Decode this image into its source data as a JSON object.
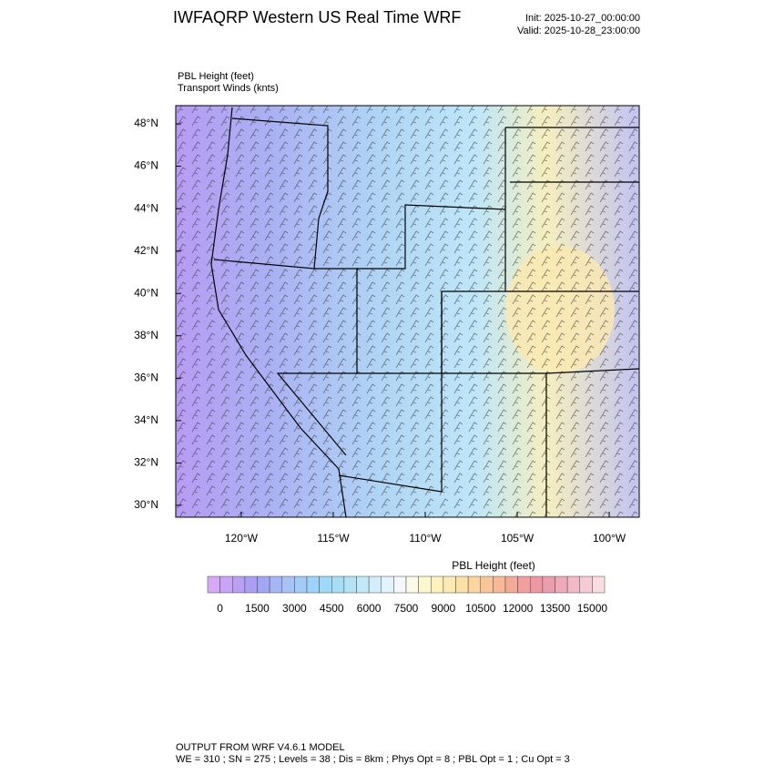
{
  "header": {
    "title": "IWFAQRP Western US Real Time WRF",
    "init": "Init: 2025-10-27_00:00:00",
    "valid": "Valid: 2025-10-28_23:00:00"
  },
  "map": {
    "field_label": "PBL Height   (feet)",
    "wind_label": "Transport Winds   (knts)",
    "xlim": [
      -123.56,
      -98.37
    ],
    "ylim": [
      29.44,
      48.86
    ],
    "xticks": [
      {
        "value": -120,
        "label": "120°W"
      },
      {
        "value": -115,
        "label": "115°W"
      },
      {
        "value": -110,
        "label": "110°W"
      },
      {
        "value": -105,
        "label": "105°W"
      },
      {
        "value": -100,
        "label": "100°W"
      }
    ],
    "yticks": [
      {
        "value": 30,
        "label": "30°N"
      },
      {
        "value": 32,
        "label": "32°N"
      },
      {
        "value": 34,
        "label": "34°N"
      },
      {
        "value": 36,
        "label": "36°N"
      },
      {
        "value": 38,
        "label": "38°N"
      },
      {
        "value": 40,
        "label": "40°N"
      },
      {
        "value": 42,
        "label": "42°N"
      },
      {
        "value": 44,
        "label": "44°N"
      },
      {
        "value": 46,
        "label": "46°N"
      },
      {
        "value": 48,
        "label": "48°N"
      }
    ]
  },
  "colorbar": {
    "title": "PBL Height  (feet)",
    "lim": [
      -500,
      15500
    ],
    "ticks": [
      0,
      1500,
      3000,
      4500,
      6000,
      7500,
      9000,
      10500,
      12000,
      13500,
      15000
    ],
    "colors": [
      "#d6a8f5",
      "#c9a3f5",
      "#b9a0f5",
      "#ab9ef5",
      "#a3a6f5",
      "#a6b5f5",
      "#a9c2f5",
      "#a3cbf7",
      "#9dd3f8",
      "#9ed9f8",
      "#a6def8",
      "#b4e3f8",
      "#c3e9f9",
      "#d3eefa",
      "#e3f3fb",
      "#f3f8fc",
      "#fbfbe8",
      "#fdf7cf",
      "#fdf1be",
      "#fde9b2",
      "#fde0a8",
      "#fbd4a0",
      "#f9c69a",
      "#f7b898",
      "#f5aa98",
      "#f39e9e",
      "#f097a4",
      "#ec9dad",
      "#eeaab9",
      "#f2bac7",
      "#f6cbd4",
      "#fadce2"
    ]
  },
  "footer": {
    "line1": "OUTPUT FROM WRF V4.6.1 MODEL",
    "line2": "WE = 310 ; SN = 275 ; Levels = 38 ; Dis = 8km ; Phys Opt = 8 ; PBL Opt = 1 ; Cu Opt = 3"
  }
}
